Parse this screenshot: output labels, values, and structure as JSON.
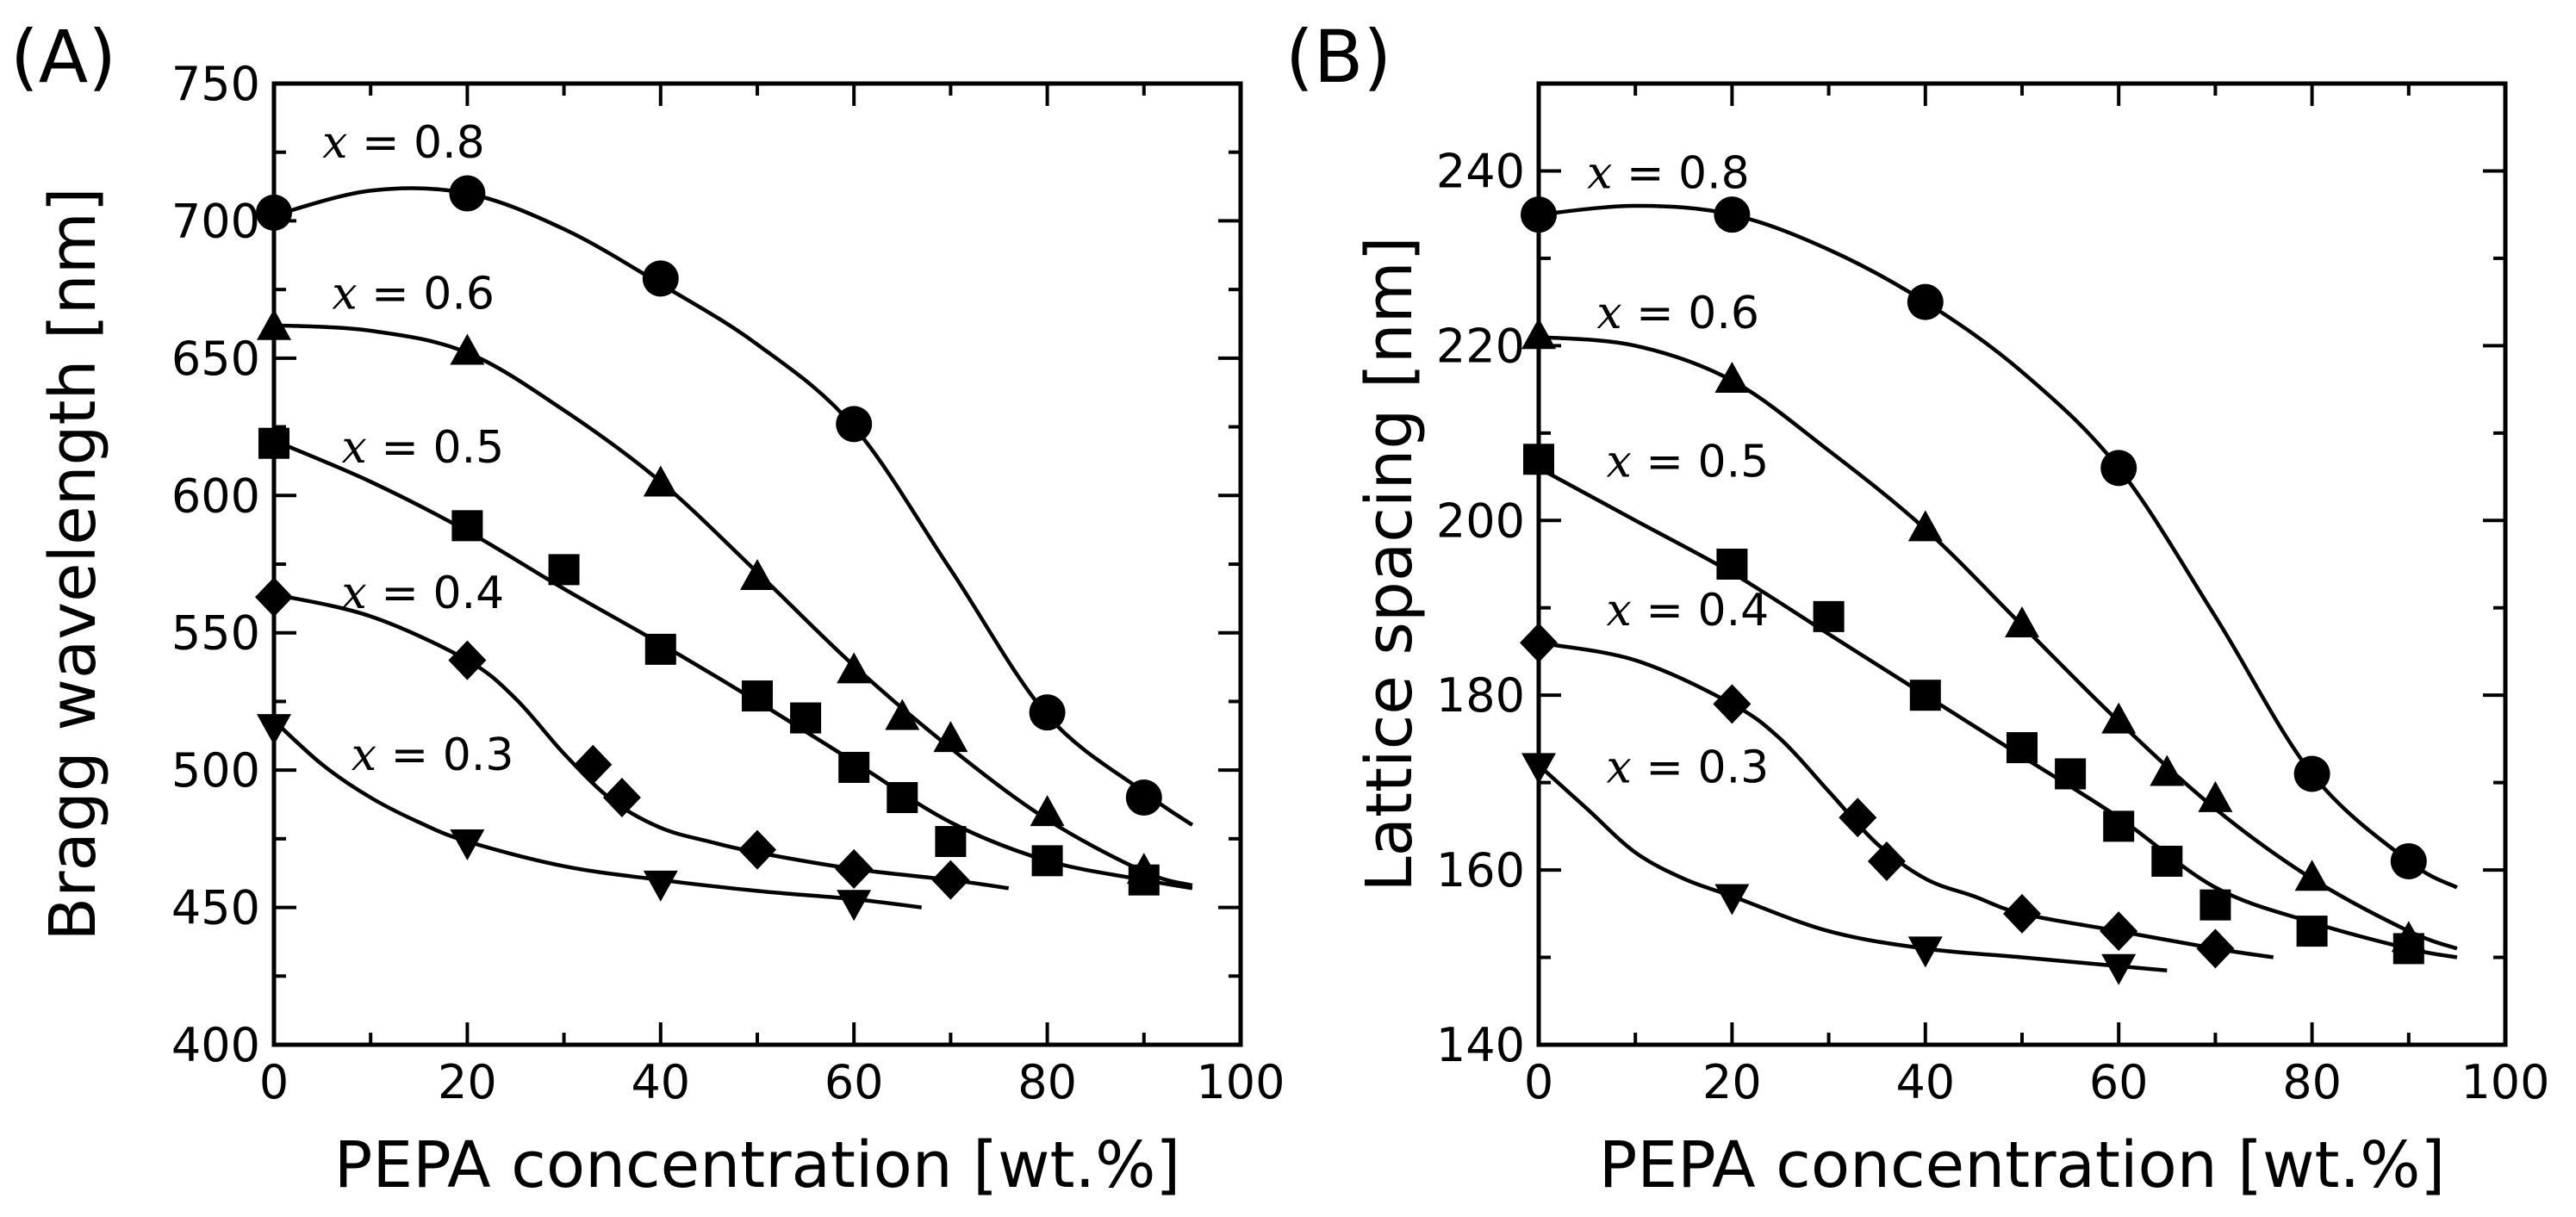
{
  "chart_data": [
    {
      "panel": "(A)",
      "type": "scatter",
      "xlabel": "PEPA concentration [wt.%]",
      "ylabel": "Bragg wavelength [nm]",
      "xlim": [
        0,
        100
      ],
      "ylim": [
        400,
        750
      ],
      "xticks": [
        0,
        20,
        40,
        60,
        80,
        100
      ],
      "yticks": [
        400,
        450,
        500,
        550,
        600,
        650,
        700,
        750
      ],
      "series": [
        {
          "name": "x = 0.8",
          "label_var": "x",
          "label_rest": " = 0.8",
          "marker": "circle",
          "label_at": [
            5,
            723
          ],
          "x": [
            0,
            20,
            40,
            60,
            80,
            90
          ],
          "y": [
            703,
            710,
            679,
            626,
            521,
            490
          ],
          "curve_x": [
            0,
            10,
            20,
            30,
            40,
            50,
            60,
            70,
            80,
            90,
            95
          ],
          "curve_y": [
            702,
            711,
            710,
            697,
            677,
            655,
            625,
            573,
            520,
            492,
            480
          ]
        },
        {
          "name": "x = 0.6",
          "label_var": "x",
          "label_rest": " = 0.6",
          "marker": "triangle-up",
          "label_at": [
            6,
            668
          ],
          "x": [
            0,
            20,
            40,
            50,
            60,
            65,
            70,
            80,
            90
          ],
          "y": [
            661,
            652,
            604,
            570,
            536,
            519,
            511,
            484,
            463
          ],
          "curve_x": [
            0,
            10,
            20,
            30,
            40,
            50,
            60,
            70,
            80,
            90,
            95
          ],
          "curve_y": [
            662,
            660,
            652,
            631,
            605,
            572,
            538,
            508,
            482,
            463,
            458
          ]
        },
        {
          "name": "x = 0.5",
          "label_var": "x",
          "label_rest": " = 0.5",
          "marker": "square",
          "label_at": [
            7,
            612
          ],
          "x": [
            0,
            20,
            30,
            40,
            50,
            55,
            60,
            65,
            70,
            80,
            90
          ],
          "y": [
            619,
            589,
            573,
            544,
            527,
            519,
            501,
            490,
            474,
            467,
            460
          ],
          "curve_x": [
            0,
            10,
            20,
            30,
            40,
            50,
            60,
            70,
            80,
            90,
            95
          ],
          "curve_y": [
            620,
            605,
            587,
            566,
            546,
            525,
            503,
            481,
            467,
            460,
            457
          ]
        },
        {
          "name": "x = 0.4",
          "label_var": "x",
          "label_rest": " = 0.4",
          "marker": "diamond",
          "label_at": [
            7,
            559
          ],
          "x": [
            0,
            20,
            33,
            36,
            50,
            60,
            70
          ],
          "y": [
            563,
            540,
            502,
            490,
            471,
            464,
            460
          ],
          "curve_x": [
            0,
            10,
            20,
            25,
            30,
            35,
            40,
            45,
            50,
            60,
            70,
            76
          ],
          "curve_y": [
            564,
            556,
            540,
            526,
            506,
            489,
            479,
            474,
            470,
            464,
            460,
            457
          ]
        },
        {
          "name": "x = 0.3",
          "label_var": "x",
          "label_rest": " = 0.3",
          "marker": "triangle-down",
          "label_at": [
            8,
            500
          ],
          "x": [
            0,
            20,
            40,
            60
          ],
          "y": [
            516,
            474,
            459,
            452
          ],
          "curve_x": [
            0,
            5,
            10,
            15,
            20,
            30,
            40,
            50,
            60,
            67
          ],
          "curve_y": [
            518,
            502,
            490,
            481,
            474,
            465,
            460,
            456,
            453,
            450
          ]
        }
      ]
    },
    {
      "panel": "(B)",
      "type": "scatter",
      "xlabel": "PEPA concentration [wt.%]",
      "ylabel": "Lattice spacing [nm]",
      "xlim": [
        0,
        100
      ],
      "ylim": [
        140,
        250
      ],
      "xticks": [
        0,
        20,
        40,
        60,
        80,
        100
      ],
      "yticks": [
        140,
        160,
        180,
        200,
        220,
        240
      ],
      "series": [
        {
          "name": "x = 0.8",
          "label_var": "x",
          "label_rest": " = 0.8",
          "marker": "circle",
          "label_at": [
            5,
            238
          ],
          "x": [
            0,
            20,
            40,
            60,
            80,
            90
          ],
          "y": [
            235,
            235,
            225,
            206,
            171,
            161
          ],
          "curve_x": [
            0,
            10,
            20,
            30,
            40,
            50,
            60,
            70,
            80,
            90,
            95
          ],
          "curve_y": [
            235,
            236,
            235,
            231,
            225,
            217,
            206,
            189,
            171,
            161,
            158
          ]
        },
        {
          "name": "x = 0.6",
          "label_var": "x",
          "label_rest": " = 0.6",
          "marker": "triangle-up",
          "label_at": [
            6,
            222
          ],
          "x": [
            0,
            20,
            40,
            50,
            60,
            65,
            70,
            80,
            90
          ],
          "y": [
            221,
            216,
            199,
            188,
            177,
            171,
            168,
            159,
            152
          ],
          "curve_x": [
            0,
            10,
            20,
            30,
            40,
            50,
            60,
            70,
            80,
            90,
            95
          ],
          "curve_y": [
            221,
            220,
            216,
            208,
            199,
            188,
            177,
            167,
            159,
            153,
            151
          ]
        },
        {
          "name": "x = 0.5",
          "label_var": "x",
          "label_rest": " = 0.5",
          "marker": "square",
          "label_at": [
            7,
            205
          ],
          "x": [
            0,
            20,
            30,
            40,
            50,
            55,
            60,
            65,
            70,
            80,
            90
          ],
          "y": [
            207,
            195,
            189,
            180,
            174,
            171,
            165,
            161,
            156,
            153,
            151
          ],
          "curve_x": [
            0,
            10,
            20,
            30,
            40,
            50,
            60,
            70,
            80,
            90,
            95
          ],
          "curve_y": [
            206,
            200,
            194,
            187,
            180,
            173,
            166,
            158,
            154,
            151,
            150
          ]
        },
        {
          "name": "x = 0.4",
          "label_var": "x",
          "label_rest": " = 0.4",
          "marker": "diamond",
          "label_at": [
            7,
            188
          ],
          "x": [
            0,
            20,
            33,
            36,
            50,
            60,
            70
          ],
          "y": [
            186,
            179,
            166,
            161,
            155,
            153,
            151
          ],
          "curve_x": [
            0,
            10,
            20,
            25,
            30,
            35,
            40,
            45,
            50,
            60,
            70,
            76
          ],
          "curve_y": [
            186,
            184,
            179,
            175,
            169,
            163,
            159,
            157,
            155,
            153,
            151,
            150
          ]
        },
        {
          "name": "x = 0.3",
          "label_var": "x",
          "label_rest": " = 0.3",
          "marker": "triangle-down",
          "label_at": [
            7,
            170
          ],
          "x": [
            0,
            20,
            40,
            60
          ],
          "y": [
            172,
            157,
            151,
            149
          ],
          "curve_x": [
            0,
            5,
            10,
            15,
            20,
            30,
            40,
            50,
            60,
            65
          ],
          "curve_y": [
            172,
            167,
            162,
            159,
            157,
            153,
            151,
            150,
            149,
            148.5
          ]
        }
      ]
    }
  ]
}
